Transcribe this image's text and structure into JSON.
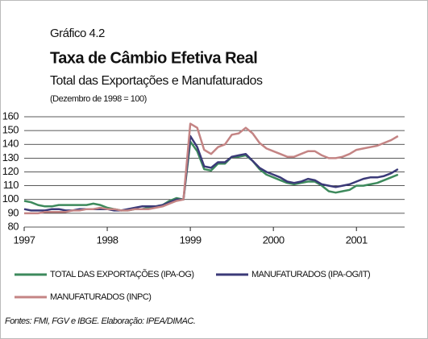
{
  "chart_data": {
    "type": "line",
    "label": "Gráfico 4.2",
    "title": "Taxa de Câmbio Efetiva Real",
    "subtitle": "Total das Exportações e Manufaturados",
    "note": "(Dezembro de 1998 = 100)",
    "source": "Fontes: FMI, FGV e IBGE. Elaboração: IPEA/DIMAC.",
    "x": [
      1997,
      1997.083,
      1997.167,
      1997.25,
      1997.333,
      1997.417,
      1997.5,
      1997.583,
      1997.667,
      1997.75,
      1997.833,
      1997.917,
      1998,
      1998.083,
      1998.167,
      1998.25,
      1998.333,
      1998.417,
      1998.5,
      1998.583,
      1998.667,
      1998.75,
      1998.833,
      1998.917,
      1999,
      1999.083,
      1999.167,
      1999.25,
      1999.333,
      1999.417,
      1999.5,
      1999.583,
      1999.667,
      1999.75,
      1999.833,
      1999.917,
      2000,
      2000.083,
      2000.167,
      2000.25,
      2000.333,
      2000.417,
      2000.5,
      2000.583,
      2000.667,
      2000.75,
      2000.833,
      2000.917,
      2001,
      2001.083,
      2001.167,
      2001.25,
      2001.333,
      2001.417,
      2001.5
    ],
    "series": [
      {
        "name": "TOTAL DAS EXPORTAÇÕES (IPA-OG)",
        "color": "#3d8a5c",
        "values": [
          99,
          98,
          96,
          95,
          95,
          96,
          96,
          96,
          96,
          96,
          97,
          96,
          94,
          93,
          92,
          92,
          93,
          93,
          94,
          95,
          96,
          99,
          101,
          100,
          142,
          135,
          122,
          121,
          126,
          126,
          131,
          131,
          132,
          128,
          122,
          118,
          116,
          114,
          112,
          111,
          112,
          113,
          113,
          110,
          106,
          105,
          106,
          107,
          110,
          110,
          111,
          112,
          114,
          116,
          118
        ]
      },
      {
        "name": "MANUFATURADOS (IPA-OG/IT)",
        "color": "#3b3a78",
        "values": [
          93,
          92,
          92,
          92,
          93,
          93,
          92,
          92,
          93,
          93,
          93,
          93,
          93,
          92,
          92,
          93,
          94,
          95,
          95,
          95,
          96,
          98,
          100,
          100,
          146,
          138,
          124,
          123,
          127,
          127,
          131,
          132,
          133,
          128,
          123,
          120,
          118,
          116,
          113,
          112,
          113,
          115,
          114,
          111,
          110,
          109,
          110,
          111,
          113,
          115,
          116,
          116,
          117,
          119,
          122
        ]
      },
      {
        "name": "MANUFATURADOS (INPC)",
        "color": "#c48484",
        "values": [
          90,
          90,
          90,
          91,
          91,
          91,
          91,
          92,
          92,
          93,
          93,
          94,
          93,
          93,
          92,
          92,
          93,
          93,
          93,
          94,
          95,
          97,
          99,
          100,
          155,
          152,
          136,
          133,
          138,
          140,
          147,
          148,
          152,
          148,
          141,
          137,
          135,
          133,
          131,
          131,
          133,
          135,
          135,
          132,
          130,
          130,
          131,
          133,
          136,
          137,
          138,
          139,
          141,
          143,
          146
        ]
      }
    ],
    "xlim": [
      1997,
      2001.58
    ],
    "xticks": [
      1997,
      1998,
      1999,
      2000,
      2001
    ],
    "ylim": [
      80,
      160
    ],
    "yticks": [
      80,
      90,
      100,
      110,
      120,
      130,
      140,
      150,
      160
    ],
    "grid": true
  }
}
